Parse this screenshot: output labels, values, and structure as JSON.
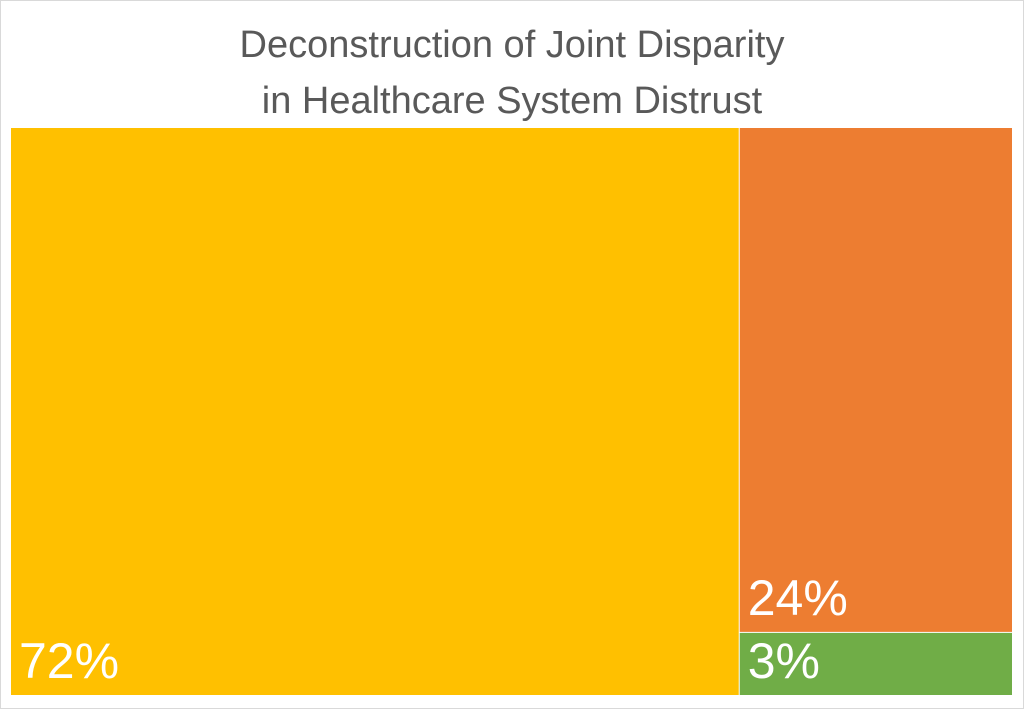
{
  "chart_data": {
    "type": "treemap",
    "title": [
      "Deconstruction of Joint Disparity",
      "in Healthcare System Distrust"
    ],
    "tiles": [
      {
        "label": "72%",
        "value": 72,
        "color": "#FFC000"
      },
      {
        "label": "24%",
        "value": 24,
        "color": "#ED7D31"
      },
      {
        "label": "3%",
        "value": 3,
        "color": "#70AD47"
      }
    ]
  }
}
